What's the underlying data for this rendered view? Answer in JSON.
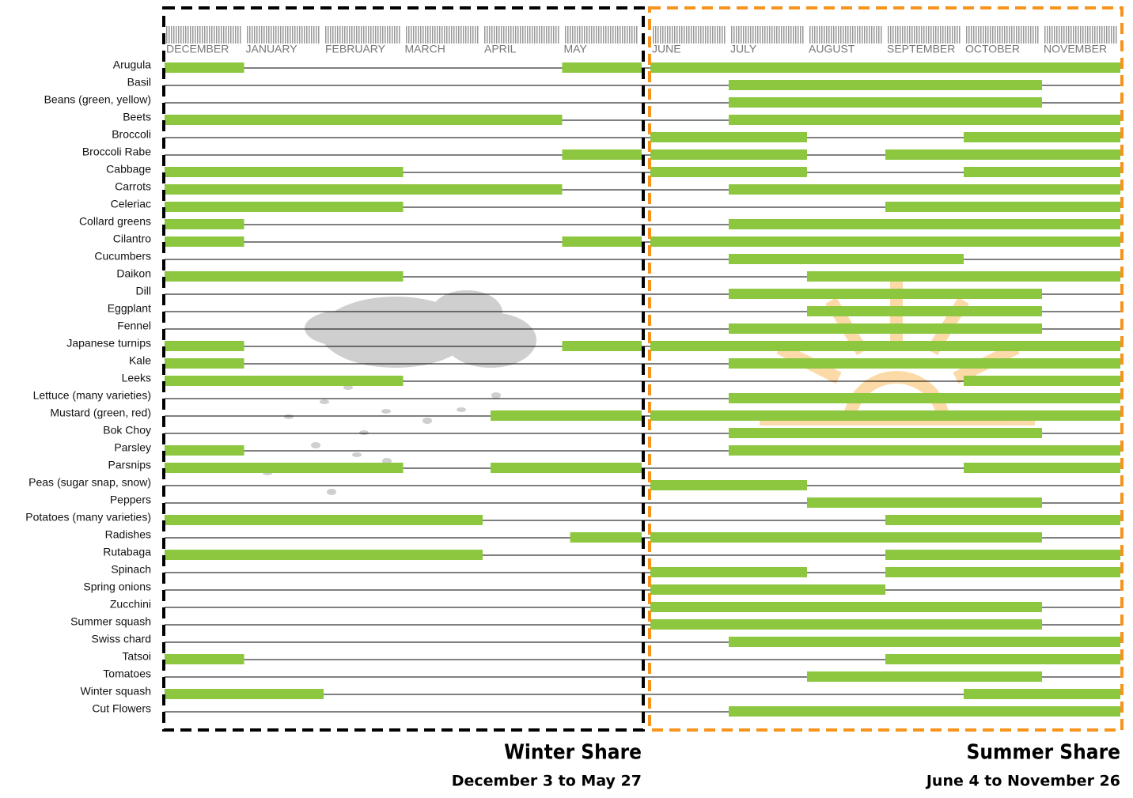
{
  "chart_data": {
    "type": "gantt",
    "xlim": [
      0,
      12
    ],
    "xticks": [
      {
        "value": 0,
        "label": "DECEMBER"
      },
      {
        "value": 1,
        "label": "JANUARY"
      },
      {
        "value": 2,
        "label": "FEBRUARY"
      },
      {
        "value": 3,
        "label": "MARCH"
      },
      {
        "value": 4,
        "label": "APRIL"
      },
      {
        "value": 5,
        "label": "MAY"
      },
      {
        "value": 6,
        "label": "JUNE"
      },
      {
        "value": 7,
        "label": "JULY"
      },
      {
        "value": 8,
        "label": "AUGUST"
      },
      {
        "value": 9,
        "label": "SEPTEMBER"
      },
      {
        "value": 10,
        "label": "OCTOBER"
      },
      {
        "value": 11,
        "label": "NOVEMBER"
      }
    ],
    "color": "#8dc63f",
    "rows": [
      {
        "name": "Arugula",
        "segments": [
          [
            0,
            1
          ],
          [
            5,
            6
          ],
          [
            6,
            12
          ]
        ]
      },
      {
        "name": "Basil",
        "segments": [
          [
            7,
            11
          ]
        ]
      },
      {
        "name": "Beans (green, yellow)",
        "segments": [
          [
            7,
            11
          ]
        ]
      },
      {
        "name": "Beets",
        "segments": [
          [
            0,
            5
          ],
          [
            7,
            12
          ]
        ]
      },
      {
        "name": "Broccoli",
        "segments": [
          [
            6,
            8
          ],
          [
            10,
            12
          ]
        ]
      },
      {
        "name": "Broccoli Rabe",
        "segments": [
          [
            5,
            6
          ],
          [
            6,
            8
          ],
          [
            9,
            12
          ]
        ]
      },
      {
        "name": "Cabbage",
        "segments": [
          [
            0,
            3
          ],
          [
            6,
            8
          ],
          [
            10,
            12
          ]
        ]
      },
      {
        "name": "Carrots",
        "segments": [
          [
            0,
            5
          ],
          [
            7,
            12
          ]
        ]
      },
      {
        "name": "Celeriac",
        "segments": [
          [
            0,
            3
          ],
          [
            9,
            12
          ]
        ]
      },
      {
        "name": "Collard greens",
        "segments": [
          [
            0,
            1
          ],
          [
            7,
            12
          ]
        ]
      },
      {
        "name": "Cilantro",
        "segments": [
          [
            0,
            1
          ],
          [
            5,
            6
          ],
          [
            6,
            12
          ]
        ]
      },
      {
        "name": "Cucumbers",
        "segments": [
          [
            7,
            10
          ]
        ]
      },
      {
        "name": "Daikon",
        "segments": [
          [
            0,
            3
          ],
          [
            8,
            12
          ]
        ]
      },
      {
        "name": "Dill",
        "segments": [
          [
            7,
            11
          ]
        ]
      },
      {
        "name": "Eggplant",
        "segments": [
          [
            8,
            11
          ]
        ]
      },
      {
        "name": "Fennel",
        "segments": [
          [
            7,
            11
          ]
        ]
      },
      {
        "name": "Japanese turnips",
        "segments": [
          [
            0,
            1
          ],
          [
            5,
            6
          ],
          [
            6,
            12
          ]
        ]
      },
      {
        "name": "Kale",
        "segments": [
          [
            0,
            1
          ],
          [
            7,
            12
          ]
        ]
      },
      {
        "name": "Leeks",
        "segments": [
          [
            0,
            3
          ],
          [
            10,
            12
          ]
        ]
      },
      {
        "name": "Lettuce (many varieties)",
        "segments": [
          [
            7,
            12
          ]
        ]
      },
      {
        "name": "Mustard (green, red)",
        "segments": [
          [
            4.1,
            6
          ],
          [
            6,
            12
          ]
        ]
      },
      {
        "name": "Bok Choy",
        "segments": [
          [
            7,
            11
          ]
        ]
      },
      {
        "name": "Parsley",
        "segments": [
          [
            0,
            1
          ],
          [
            7,
            12
          ]
        ]
      },
      {
        "name": "Parsnips",
        "segments": [
          [
            0,
            3
          ],
          [
            4.1,
            6
          ],
          [
            10,
            12
          ]
        ]
      },
      {
        "name": "Peas (sugar snap, snow)",
        "segments": [
          [
            6,
            8
          ]
        ]
      },
      {
        "name": "Peppers",
        "segments": [
          [
            8,
            11
          ]
        ]
      },
      {
        "name": "Potatoes (many varieties)",
        "segments": [
          [
            0,
            4
          ],
          [
            9,
            12
          ]
        ]
      },
      {
        "name": "Radishes",
        "segments": [
          [
            5.1,
            6
          ],
          [
            6,
            11
          ]
        ]
      },
      {
        "name": "Rutabaga",
        "segments": [
          [
            0,
            4
          ],
          [
            9,
            12
          ]
        ]
      },
      {
        "name": "Spinach",
        "segments": [
          [
            6,
            8
          ],
          [
            9,
            12
          ]
        ]
      },
      {
        "name": "Spring onions",
        "segments": [
          [
            6,
            9
          ]
        ]
      },
      {
        "name": "Zucchini",
        "segments": [
          [
            6,
            11
          ]
        ]
      },
      {
        "name": "Summer squash",
        "segments": [
          [
            6,
            11
          ]
        ]
      },
      {
        "name": "Swiss chard",
        "segments": [
          [
            7,
            12
          ]
        ]
      },
      {
        "name": "Tatsoi",
        "segments": [
          [
            0,
            1
          ],
          [
            9,
            12
          ]
        ]
      },
      {
        "name": "Tomatoes",
        "segments": [
          [
            8,
            11
          ]
        ]
      },
      {
        "name": "Winter squash",
        "segments": [
          [
            0,
            2
          ],
          [
            10,
            12
          ]
        ]
      },
      {
        "name": "Cut Flowers",
        "segments": [
          [
            7,
            12
          ]
        ]
      }
    ],
    "winter": {
      "title": "Winter Share",
      "subtitle": "December 3 to May 27"
    },
    "summer": {
      "title": "Summer Share",
      "subtitle": "June 4 to November 26"
    }
  }
}
